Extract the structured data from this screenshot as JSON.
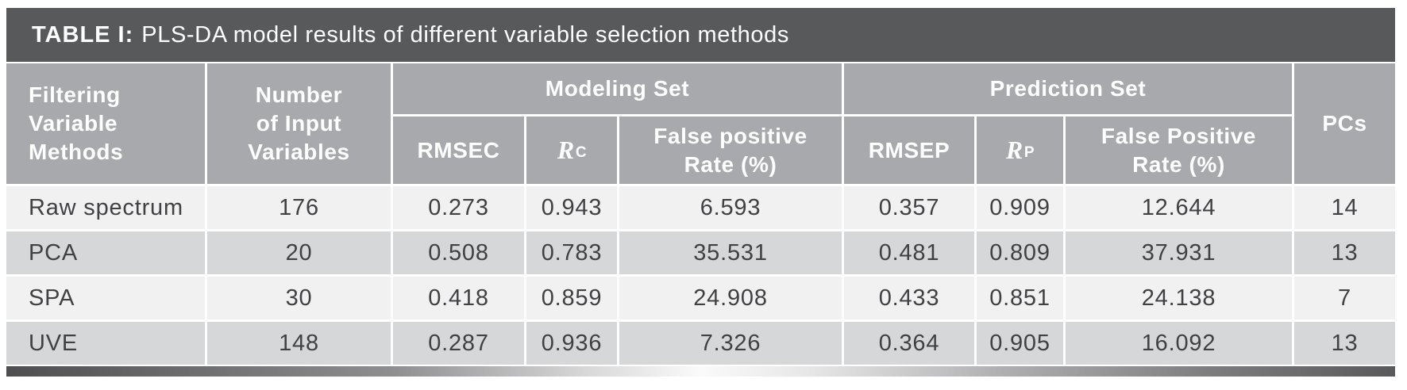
{
  "table": {
    "title": {
      "label_bold": "TABLE I:",
      "label_rest": "PLS-DA model results of different variable selection methods"
    },
    "header": {
      "filtering_methods": "Filtering\nVariable\nMethods",
      "num_input_variables": "Number\nof Input\nVariables",
      "modeling_set": "Modeling Set",
      "prediction_set": "Prediction Set",
      "rmsec": "RMSEC",
      "r_c_base": "R",
      "r_c_sub": "C",
      "false_positive_modeling": "False positive\nRate (%)",
      "rmsep": "RMSEP",
      "r_p_base": "R",
      "r_p_sub": "P",
      "false_positive_prediction": "False Positive\nRate (%)",
      "pcs": "PCs"
    },
    "rows": [
      {
        "method": "Raw spectrum",
        "n_vars": "176",
        "rmsec": "0.273",
        "r_c": "0.943",
        "fpr_m": "6.593",
        "rmsep": "0.357",
        "r_p": "0.909",
        "fpr_p": "12.644",
        "pcs": "14"
      },
      {
        "method": "PCA",
        "n_vars": "20",
        "rmsec": "0.508",
        "r_c": "0.783",
        "fpr_m": "35.531",
        "rmsep": "0.481",
        "r_p": "0.809",
        "fpr_p": "37.931",
        "pcs": "13"
      },
      {
        "method": "SPA",
        "n_vars": "30",
        "rmsec": "0.418",
        "r_c": "0.859",
        "fpr_m": "24.908",
        "rmsep": "0.433",
        "r_p": "0.851",
        "fpr_p": "24.138",
        "pcs": "7"
      },
      {
        "method": "UVE",
        "n_vars": "148",
        "rmsec": "0.287",
        "r_c": "0.936",
        "fpr_m": "7.326",
        "rmsep": "0.364",
        "r_p": "0.905",
        "fpr_p": "16.092",
        "pcs": "13"
      }
    ],
    "colors": {
      "title_bar": "#58595b",
      "header_bg": "#a7a9ac",
      "row_light": "#f1f1f2",
      "row_dark": "#d6d7d9",
      "text_dark": "#414042"
    }
  }
}
